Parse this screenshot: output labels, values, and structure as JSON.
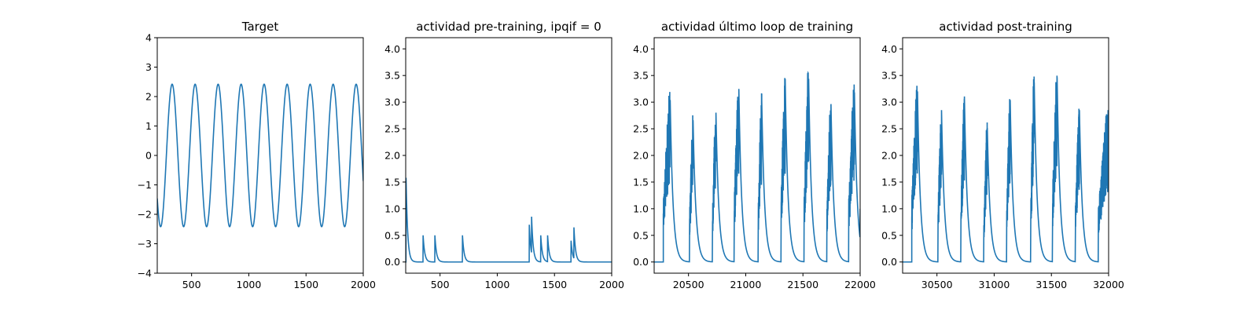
{
  "figure": {
    "line_color": "#1f77b4"
  },
  "chart_data": [
    {
      "type": "line",
      "title": "Target",
      "xlim": [
        200,
        2000
      ],
      "ylim": [
        -4,
        4
      ],
      "xticks": [
        500,
        1000,
        1500,
        2000
      ],
      "yticks": [
        -4,
        -3,
        -2,
        -1,
        0,
        1,
        2,
        3,
        4
      ],
      "ytick_labels": [
        "−4",
        "−3",
        "−2",
        "−1",
        "0",
        "1",
        "2",
        "3",
        "4"
      ],
      "series": [
        {
          "kind": "sine",
          "amplitude": 2.42,
          "period": 201,
          "first_peak_x": 330,
          "x_start": 200,
          "x_end": 2000
        }
      ]
    },
    {
      "type": "line",
      "title": "actividad pre-training, ipqif = 0",
      "xlim": [
        200,
        2000
      ],
      "ylim": [
        -0.21,
        4.21
      ],
      "xticks": [
        500,
        1000,
        1500,
        2000
      ],
      "yticks": [
        0.0,
        0.5,
        1.0,
        1.5,
        2.0,
        2.5,
        3.0,
        3.5,
        4.0
      ],
      "ytick_labels": [
        "0.0",
        "0.5",
        "1.0",
        "1.5",
        "2.0",
        "2.5",
        "3.0",
        "3.5",
        "4.0"
      ],
      "series": [
        {
          "kind": "spikes",
          "baseline": 0,
          "decay": 14,
          "x_start": 200,
          "x_end": 2000,
          "events": [
            [
              203,
              1.58
            ],
            [
              352,
              0.5
            ],
            [
              455,
              0.5
            ],
            [
              696,
              0.5
            ],
            [
              1280,
              0.7
            ],
            [
              1300,
              0.85
            ],
            [
              1380,
              0.5
            ],
            [
              1440,
              0.5
            ],
            [
              1645,
              0.4
            ],
            [
              1670,
              0.65
            ]
          ]
        }
      ]
    },
    {
      "type": "line",
      "title": "actividad último loop de training",
      "xlim": [
        20200,
        22000
      ],
      "ylim": [
        -0.21,
        4.21
      ],
      "xticks": [
        20500,
        21000,
        21500,
        22000
      ],
      "yticks": [
        0.0,
        0.5,
        1.0,
        1.5,
        2.0,
        2.5,
        3.0,
        3.5,
        4.0
      ],
      "ytick_labels": [
        "0.0",
        "0.5",
        "1.0",
        "1.5",
        "2.0",
        "2.5",
        "3.0",
        "3.5",
        "4.0"
      ],
      "series": [
        {
          "kind": "bursts",
          "baseline": 0,
          "flat_until": 20280,
          "decay": 25,
          "x_end": 22000,
          "bursts": [
            [
              20280,
              20340,
              3.2
            ],
            [
              20510,
              20540,
              2.8
            ],
            [
              20710,
              20740,
              2.95
            ],
            [
              20900,
              20940,
              3.42
            ],
            [
              21110,
              21140,
              3.2
            ],
            [
              21310,
              21345,
              3.62
            ],
            [
              21510,
              21550,
              3.62
            ],
            [
              21710,
              21745,
              3.12
            ],
            [
              21900,
              21950,
              3.35
            ]
          ]
        }
      ]
    },
    {
      "type": "line",
      "title": "actividad post-training",
      "xlim": [
        30200,
        32000
      ],
      "ylim": [
        -0.21,
        4.21
      ],
      "xticks": [
        30500,
        31000,
        31500,
        32000
      ],
      "yticks": [
        0.0,
        0.5,
        1.0,
        1.5,
        2.0,
        2.5,
        3.0,
        3.5,
        4.0
      ],
      "ytick_labels": [
        "0.0",
        "0.5",
        "1.0",
        "1.5",
        "2.0",
        "2.5",
        "3.0",
        "3.5",
        "4.0"
      ],
      "series": [
        {
          "kind": "bursts",
          "baseline": 0,
          "flat_until": 30280,
          "decay": 25,
          "x_end": 32000,
          "bursts": [
            [
              30280,
              30330,
              3.37
            ],
            [
              30510,
              30540,
              3.0
            ],
            [
              30710,
              30740,
              3.27
            ],
            [
              30910,
              30940,
              2.65
            ],
            [
              31110,
              31140,
              3.2
            ],
            [
              31320,
              31350,
              3.55
            ],
            [
              31510,
              31550,
              3.65
            ],
            [
              31710,
              31745,
              3.0
            ],
            [
              31910,
              32000,
              2.9
            ]
          ]
        }
      ]
    }
  ]
}
